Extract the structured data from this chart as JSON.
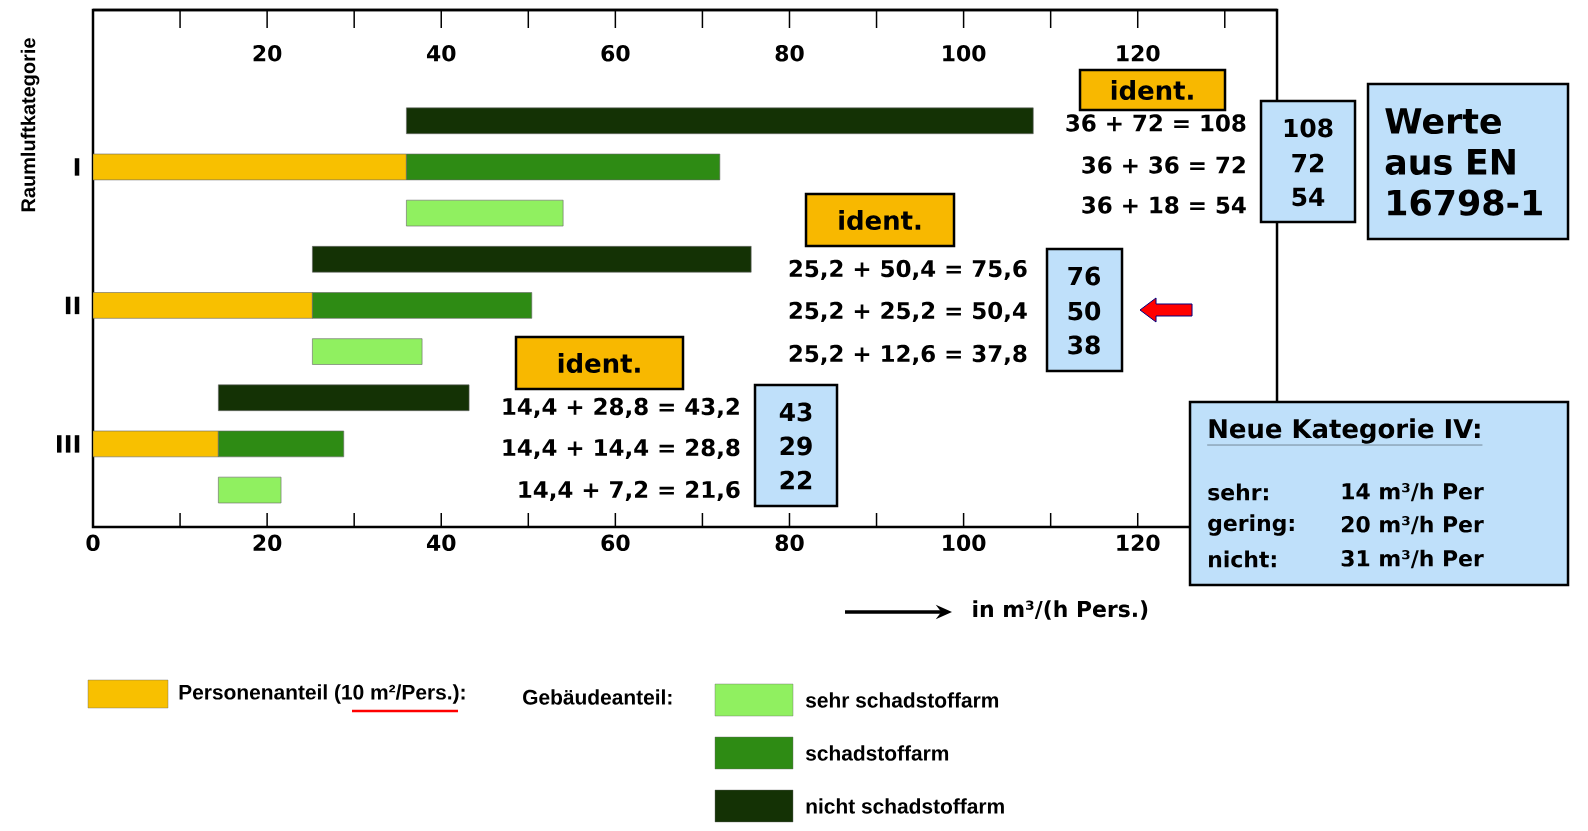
{
  "chart_data": {
    "type": "bar",
    "orientation": "horizontal",
    "xlabel": "in m³/(h Pers.)",
    "ylabel": "Raumluftkategorie",
    "legend_title": "Gebäudeanteil:",
    "categories": [
      null,
      "I",
      null,
      null,
      "II",
      null,
      null,
      "III",
      null
    ],
    "series": [
      {
        "name": "Personenanteil (10 m²/Pers.):",
        "color": "#f8c000",
        "values": [
          null,
          36,
          null,
          null,
          25.2,
          null,
          null,
          14.4,
          null
        ],
        "base": [
          null,
          0,
          null,
          null,
          0,
          null,
          null,
          0,
          null
        ]
      },
      {
        "name": "sehr schadstoffarm",
        "color": "#90f060",
        "values": [
          null,
          null,
          18,
          null,
          null,
          12.6,
          null,
          null,
          7.2
        ],
        "base": [
          null,
          null,
          36,
          null,
          null,
          25.2,
          null,
          null,
          14.4
        ]
      },
      {
        "name": "schadstoffarm",
        "color": "#2e8b14",
        "values": [
          null,
          36,
          null,
          null,
          25.2,
          null,
          null,
          14.4,
          null
        ],
        "base": [
          null,
          36,
          null,
          null,
          25.2,
          null,
          null,
          14.4,
          null
        ]
      },
      {
        "name": "nicht schadstoffarm",
        "color": "#143205",
        "values": [
          72,
          null,
          null,
          50.4,
          null,
          null,
          28.8,
          null,
          null
        ],
        "base": [
          36,
          null,
          null,
          25.2,
          null,
          null,
          14.4,
          null,
          null
        ]
      }
    ],
    "xlim": [
      0,
      136
    ],
    "xticks": [
      0,
      20,
      40,
      60,
      80,
      100,
      120
    ],
    "x2lim": [
      0,
      136
    ],
    "x2ticks": [
      20,
      40,
      60,
      80,
      100,
      120
    ],
    "legend": "bottom",
    "annotations": [
      "ident.",
      "ident.",
      "ident.",
      "36 + 72 = 108",
      "36 + 36 = 72",
      "36 + 18 = 54",
      "25,2 + 50,4 = 75,6",
      "25,2 + 25,2 = 50,4",
      "25,2 + 12,6 = 37,8",
      "14,4 + 28,8 = 43,2",
      "14,4 + 14,4 = 28,8",
      "14,4 + 7,2 = 21,6",
      "108",
      "72",
      "54",
      "76",
      "50",
      "38",
      "43",
      "29",
      "22",
      "Werte aus EN 16798-1",
      "Neue Kategorie IV:",
      "sehr:",
      "14 m³/h Per",
      "gering:",
      "20 m³/h Per",
      "nicht:",
      "31 m³/h Per"
    ]
  }
}
